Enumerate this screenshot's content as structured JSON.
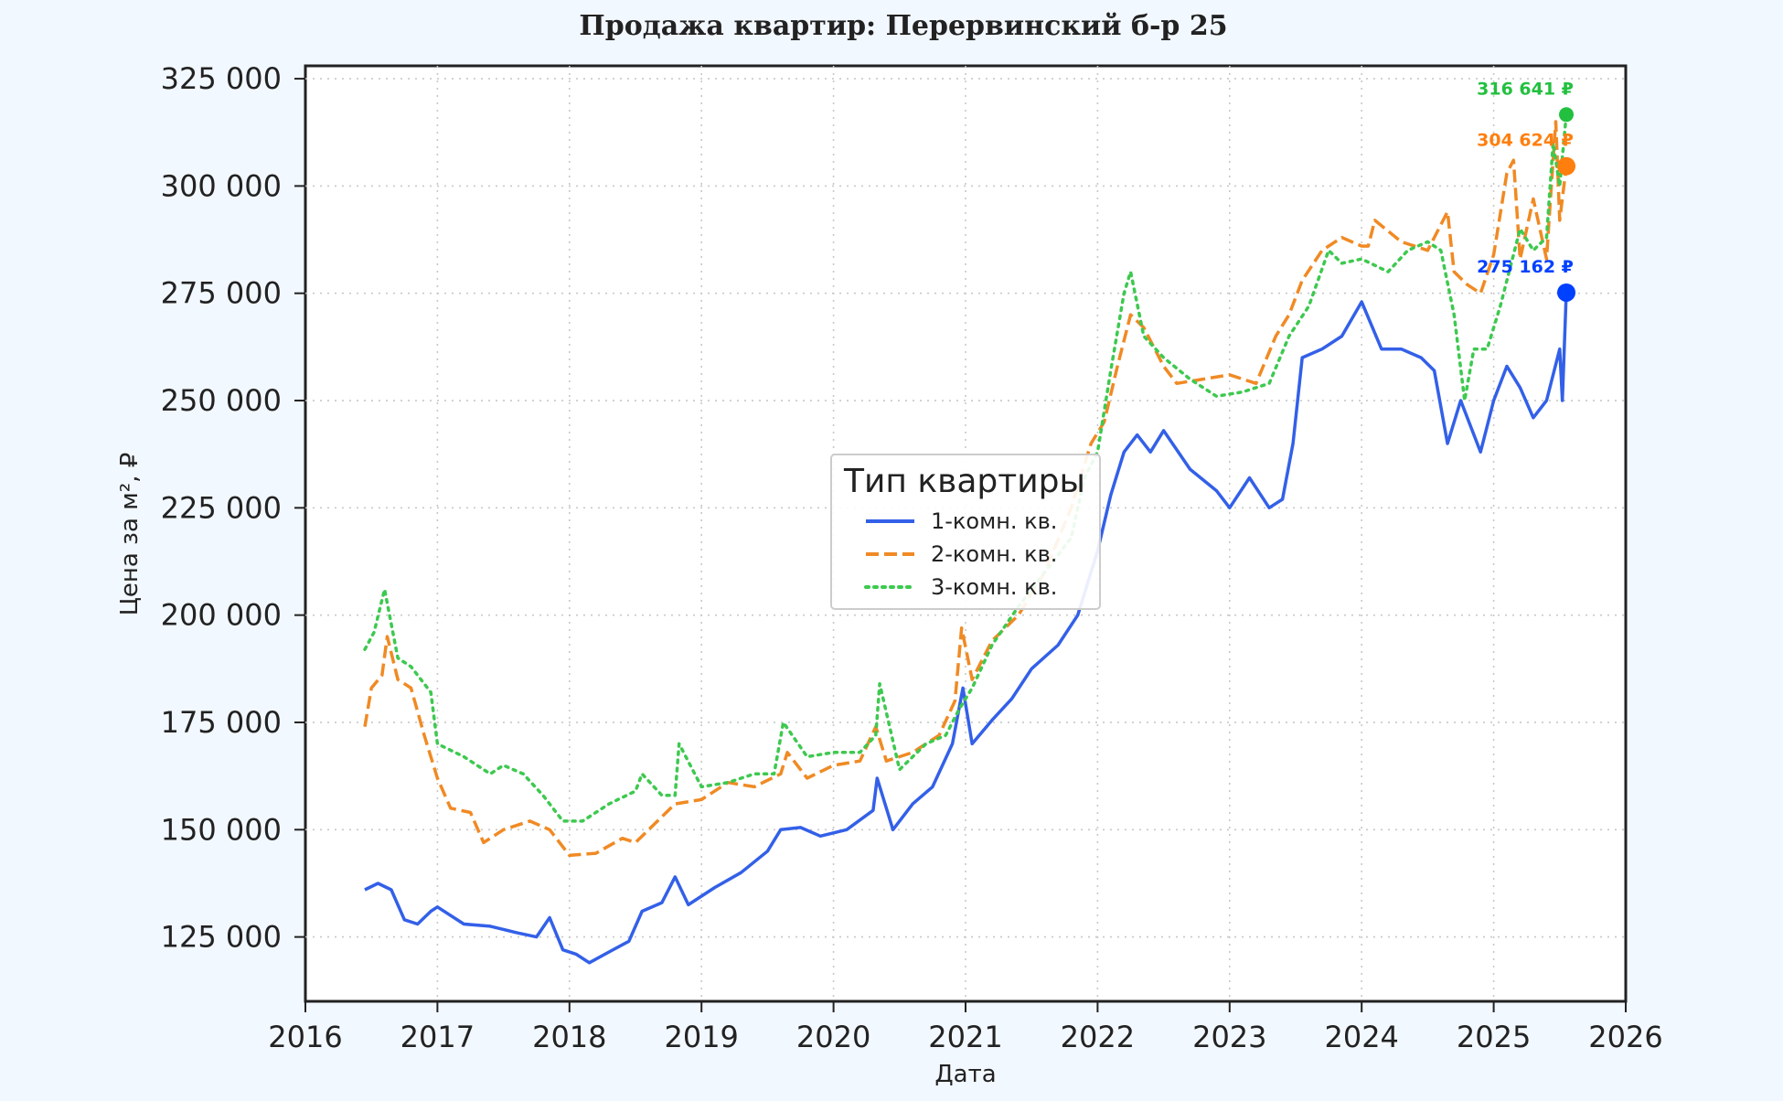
{
  "chart_data": {
    "type": "line",
    "title": "Продажа квартир: Перервинский б-р 25",
    "xlabel": "Дата",
    "ylabel": "Цена за м², ₽",
    "xlim": [
      2016,
      2026
    ],
    "ylim": [
      110000,
      328000
    ],
    "xticks": [
      "2016",
      "2017",
      "2018",
      "2019",
      "2020",
      "2021",
      "2022",
      "2023",
      "2024",
      "2025",
      "2026"
    ],
    "yticks": [
      "125 000",
      "150 000",
      "175 000",
      "200 000",
      "225 000",
      "250 000",
      "275 000",
      "300 000",
      "325 000"
    ],
    "grid": true,
    "legend": {
      "title": "Тип квартиры",
      "placement": "center"
    },
    "series": [
      {
        "name": "1-комн. кв.",
        "color": "#3360e8",
        "style": "solid",
        "end_value": 275162,
        "end_label": "275 162 ₽",
        "end_color": "#0040ff",
        "x": [
          2016.45,
          2016.55,
          2016.65,
          2016.75,
          2016.85,
          2016.95,
          2017.0,
          2017.2,
          2017.4,
          2017.6,
          2017.75,
          2017.85,
          2017.95,
          2018.05,
          2018.15,
          2018.3,
          2018.45,
          2018.55,
          2018.7,
          2018.8,
          2018.9,
          2019.1,
          2019.3,
          2019.5,
          2019.6,
          2019.75,
          2019.9,
          2020.1,
          2020.3,
          2020.33,
          2020.45,
          2020.6,
          2020.75,
          2020.9,
          2020.98,
          2021.05,
          2021.2,
          2021.35,
          2021.5,
          2021.7,
          2021.85,
          2022.0,
          2022.1,
          2022.2,
          2022.3,
          2022.4,
          2022.5,
          2022.7,
          2022.9,
          2023.0,
          2023.15,
          2023.3,
          2023.4,
          2023.48,
          2023.55,
          2023.7,
          2023.85,
          2024.0,
          2024.15,
          2024.3,
          2024.45,
          2024.55,
          2024.65,
          2024.75,
          2024.9,
          2025.0,
          2025.1,
          2025.2,
          2025.3,
          2025.4,
          2025.5,
          2025.52,
          2025.55
        ],
        "values": [
          136000,
          137500,
          136000,
          129000,
          128000,
          131000,
          132000,
          128000,
          127500,
          126000,
          125000,
          129500,
          122000,
          121000,
          119000,
          121500,
          124000,
          131000,
          133000,
          139000,
          132500,
          136500,
          140000,
          145000,
          150000,
          150500,
          148500,
          150000,
          154500,
          162000,
          150000,
          156000,
          160000,
          170000,
          183000,
          170000,
          175500,
          180500,
          187500,
          193000,
          200000,
          215000,
          228000,
          238000,
          242000,
          238000,
          243000,
          234000,
          229000,
          225000,
          232000,
          225000,
          227000,
          240000,
          260000,
          262000,
          265000,
          273000,
          262000,
          262000,
          260000,
          257000,
          240000,
          250000,
          238000,
          250000,
          258000,
          253000,
          246000,
          250000,
          262000,
          250000,
          275162
        ]
      },
      {
        "name": "2-комн. кв.",
        "color": "#f08a24",
        "style": "dashed",
        "end_value": 304624,
        "end_label": "304 624 ₽",
        "end_color": "#ff7f0e",
        "x": [
          2016.45,
          2016.5,
          2016.58,
          2016.62,
          2016.7,
          2016.8,
          2016.9,
          2017.0,
          2017.1,
          2017.25,
          2017.35,
          2017.5,
          2017.7,
          2017.85,
          2018.0,
          2018.2,
          2018.4,
          2018.5,
          2018.6,
          2018.8,
          2019.0,
          2019.2,
          2019.4,
          2019.6,
          2019.65,
          2019.8,
          2020.0,
          2020.2,
          2020.32,
          2020.4,
          2020.6,
          2020.8,
          2020.92,
          2020.97,
          2021.05,
          2021.2,
          2021.4,
          2021.6,
          2021.8,
          2021.95,
          2022.05,
          2022.15,
          2022.25,
          2022.35,
          2022.5,
          2022.6,
          2022.8,
          2023.0,
          2023.2,
          2023.35,
          2023.45,
          2023.55,
          2023.7,
          2023.85,
          2024.0,
          2024.05,
          2024.1,
          2024.3,
          2024.5,
          2024.65,
          2024.7,
          2024.8,
          2024.9,
          2025.0,
          2025.1,
          2025.15,
          2025.2,
          2025.3,
          2025.4,
          2025.43,
          2025.47,
          2025.5,
          2025.55
        ],
        "values": [
          174000,
          183000,
          186000,
          195000,
          185000,
          183000,
          172000,
          162000,
          155000,
          154000,
          147000,
          150000,
          152000,
          150000,
          144000,
          144500,
          148000,
          147000,
          150000,
          156000,
          157000,
          161000,
          160000,
          163000,
          168000,
          162000,
          165000,
          166000,
          174000,
          166000,
          168000,
          172000,
          180000,
          197000,
          185000,
          194000,
          200000,
          210000,
          225000,
          240000,
          245000,
          258000,
          270000,
          267000,
          258000,
          254000,
          255000,
          256000,
          254000,
          265000,
          270000,
          278000,
          285000,
          288000,
          286000,
          286000,
          292000,
          287000,
          285000,
          294000,
          280000,
          277000,
          275000,
          284000,
          303000,
          306000,
          283000,
          297000,
          283000,
          297000,
          315000,
          292000,
          304624
        ]
      },
      {
        "name": "3-комн. кв.",
        "color": "#3dc94f",
        "style": "dotted",
        "end_value": 316641,
        "end_label": "316 641 ₽",
        "end_color": "#22c03e",
        "x": [
          2016.45,
          2016.52,
          2016.6,
          2016.7,
          2016.8,
          2016.95,
          2017.0,
          2017.2,
          2017.4,
          2017.5,
          2017.65,
          2017.8,
          2017.95,
          2018.1,
          2018.3,
          2018.5,
          2018.55,
          2018.7,
          2018.8,
          2018.83,
          2019.0,
          2019.2,
          2019.4,
          2019.55,
          2019.62,
          2019.8,
          2020.0,
          2020.2,
          2020.32,
          2020.35,
          2020.5,
          2020.7,
          2020.85,
          2020.95,
          2021.05,
          2021.2,
          2021.4,
          2021.6,
          2021.8,
          2021.9,
          2022.0,
          2022.1,
          2022.2,
          2022.25,
          2022.35,
          2022.5,
          2022.7,
          2022.9,
          2023.1,
          2023.3,
          2023.45,
          2023.6,
          2023.75,
          2023.85,
          2024.0,
          2024.2,
          2024.35,
          2024.5,
          2024.6,
          2024.7,
          2024.78,
          2024.85,
          2024.95,
          2025.05,
          2025.2,
          2025.3,
          2025.4,
          2025.45,
          2025.5,
          2025.55
        ],
        "values": [
          192000,
          196000,
          206000,
          190000,
          188000,
          182000,
          170000,
          167000,
          163000,
          165000,
          163000,
          158000,
          152000,
          152000,
          156000,
          159000,
          163000,
          158000,
          158000,
          170000,
          160000,
          161000,
          163000,
          163000,
          175000,
          167000,
          168000,
          168000,
          172000,
          184000,
          164000,
          170000,
          172000,
          178000,
          183000,
          193000,
          202000,
          210000,
          218000,
          232000,
          238000,
          257000,
          275000,
          280000,
          265000,
          260000,
          255000,
          251000,
          252000,
          254000,
          265000,
          272000,
          285000,
          282000,
          283000,
          280000,
          285000,
          287000,
          285000,
          270000,
          250000,
          262000,
          262000,
          272000,
          290000,
          285000,
          288000,
          310000,
          300000,
          316641
        ]
      }
    ]
  }
}
